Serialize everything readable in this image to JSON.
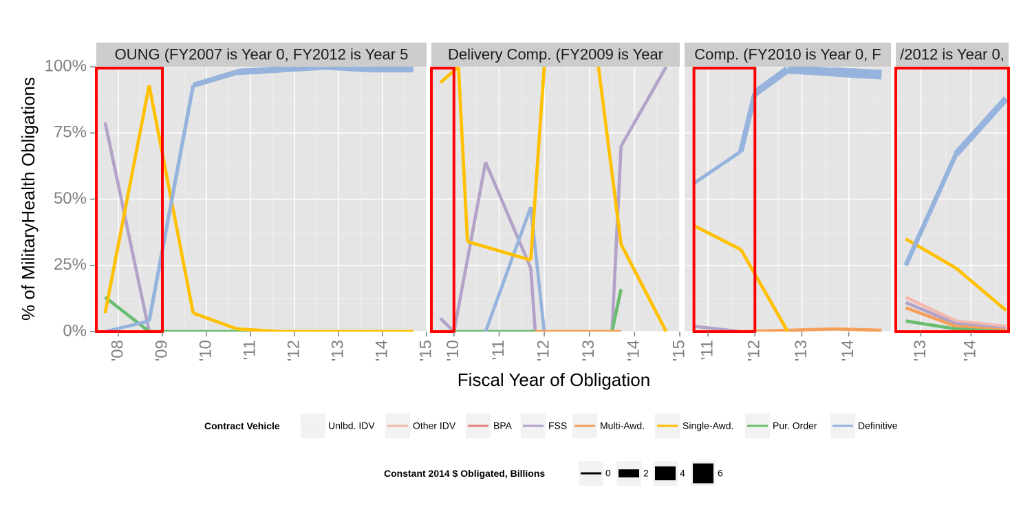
{
  "chart_data": {
    "type": "line",
    "ylabel": "% of  MilitaryHealth  Obligations",
    "xlabel": "Fiscal Year of Obligation",
    "y_ticks": [
      "0%",
      "25%",
      "50%",
      "75%",
      "100%"
    ],
    "ylim": [
      0,
      1
    ],
    "grid": true,
    "legend_position": "bottom",
    "colors": {
      "Unlbd. IDV": "#f0eff5",
      "Other IDV": "#f3b9ae",
      "BPA": "#e7837b",
      "FSS": "#b3a3c8",
      "Multi-Awd.": "#f5a05a",
      "Single-Awd.": "#ffc000",
      "Pur. Order": "#69bd6e",
      "Definitive": "#95b3dc",
      "highlight": "#ff0000"
    },
    "color_legend": {
      "title": "Contract Vehicle",
      "items": [
        "Unlbd. IDV",
        "Other IDV",
        "BPA",
        "FSS",
        "Multi-Awd.",
        "Single-Awd.",
        "Pur. Order",
        "Definitive"
      ]
    },
    "size_legend": {
      "title": "Constant 2014 $ Obligated, Billions",
      "items": [
        "0",
        "2",
        "4",
        "6"
      ],
      "values": [
        0,
        2,
        4,
        6
      ]
    },
    "panels": [
      {
        "strip": "OUNG (FY2007 is Year 0, FY2012 is Year 5",
        "xlim": [
          2007.5,
          2015.0
        ],
        "tick_values": [
          2008,
          2009,
          2010,
          2011,
          2012,
          2013,
          2014,
          2015
        ],
        "tick_labels": [
          "'08",
          "'09",
          "'10",
          "'11",
          "'12",
          "'13",
          "'14",
          "'15"
        ],
        "highlight": [
          2007.5,
          2009.0
        ],
        "series": [
          {
            "name": "FSS",
            "x": [
              2007.7,
              2008.7
            ],
            "y": [
              0.79,
              0.0
            ],
            "size": [
              0.3,
              0.3
            ]
          },
          {
            "name": "Pur. Order",
            "x": [
              2007.7,
              2008.7,
              2009.7,
              2010.7,
              2011.7,
              2012.7,
              2013.7,
              2014.7
            ],
            "y": [
              0.13,
              0.0,
              0.0,
              0.0,
              0.0,
              0.0,
              0.0,
              0.0
            ],
            "size": [
              0.3,
              0.3,
              0.3,
              0.3,
              0.3,
              0.3,
              0.3,
              0.3
            ]
          },
          {
            "name": "Single-Awd.",
            "x": [
              2007.7,
              2008.7,
              2009.7,
              2010.7,
              2011.7,
              2012.7,
              2013.7,
              2014.7
            ],
            "y": [
              0.07,
              0.93,
              0.07,
              0.01,
              0.0,
              0.0,
              0.0,
              0.0
            ],
            "size": [
              0.3,
              0.3,
              0.3,
              0.3,
              0.3,
              0.3,
              0.3,
              0.3
            ]
          },
          {
            "name": "Definitive",
            "x": [
              2007.7,
              2008.7,
              2009.7,
              2010.7,
              2011.7,
              2012.7,
              2013.7,
              2014.7
            ],
            "y": [
              0.0,
              0.04,
              0.93,
              0.98,
              0.99,
              1.0,
              0.99,
              0.99
            ],
            "size": [
              0.3,
              0.3,
              0.6,
              1.5,
              1.4,
              1.3,
              1.3,
              1.3
            ]
          }
        ]
      },
      {
        "strip": "Delivery Comp. (FY2009 is Year",
        "xlim": [
          2009.5,
          2015.0
        ],
        "tick_values": [
          2010,
          2011,
          2012,
          2013,
          2014,
          2015
        ],
        "tick_labels": [
          "'10",
          "'11",
          "'12",
          "'13",
          "'14",
          "'15"
        ],
        "highlight": [
          2009.5,
          2010.0
        ],
        "series": [
          {
            "name": "FSS",
            "x": [
              2009.7,
              2010.0,
              2010.7,
              2011.7,
              2011.8,
              2013.5,
              2013.7,
              2014.7
            ],
            "y": [
              0.05,
              0.0,
              0.64,
              0.24,
              0.0,
              0.0,
              0.7,
              1.0
            ],
            "size": [
              0.3,
              0.3,
              0.3,
              0.3,
              0.3,
              0.3,
              0.3,
              0.3
            ]
          },
          {
            "name": "Pur. Order",
            "x": [
              2009.7,
              2010.7,
              2011.7,
              2012.7,
              2013.5,
              2013.7
            ],
            "y": [
              0.0,
              0.0,
              0.0,
              0.0,
              0.0,
              0.16
            ],
            "size": [
              0.3,
              0.3,
              0.3,
              0.3,
              0.3,
              0.3
            ]
          },
          {
            "name": "Definitive",
            "x": [
              2010.7,
              2011.7,
              2012.0
            ],
            "y": [
              0.0,
              0.47,
              0.0
            ],
            "size": [
              0.3,
              0.3,
              0.3
            ]
          },
          {
            "name": "Multi-Awd.",
            "x": [
              2011.8,
              2012.7,
              2013.7
            ],
            "y": [
              0.0,
              0.0,
              0.0
            ],
            "size": [
              0.3,
              0.3,
              0.3
            ]
          },
          {
            "name": "Single-Awd.",
            "x": [
              2009.7,
              2010.1,
              2010.3,
              2011.7,
              2012.0
            ],
            "y": [
              0.94,
              1.0,
              0.34,
              0.27,
              1.0
            ],
            "size": [
              0.3,
              0.3,
              0.3,
              0.3,
              0.3
            ]
          },
          {
            "name": "Single-Awd.",
            "x": [
              2013.2,
              2013.7,
              2014.7
            ],
            "y": [
              1.0,
              0.33,
              0.0
            ],
            "size": [
              0.3,
              0.3,
              0.3
            ]
          }
        ]
      },
      {
        "strip": "Comp. (FY2010 is Year 0, F",
        "xlim": [
          2010.5,
          2014.9
        ],
        "tick_values": [
          2011,
          2012,
          2013,
          2014
        ],
        "tick_labels": [
          "'11",
          "'12",
          "'13",
          "'14"
        ],
        "highlight": [
          2010.7,
          2012.0
        ],
        "series": [
          {
            "name": "FSS",
            "x": [
              2010.7,
              2011.7
            ],
            "y": [
              0.02,
              0.0
            ],
            "size": [
              0.3,
              0.3
            ]
          },
          {
            "name": "Multi-Awd.",
            "x": [
              2011.7,
              2012.7,
              2013.7,
              2014.7
            ],
            "y": [
              0.0,
              0.005,
              0.01,
              0.005
            ],
            "size": [
              0.3,
              0.3,
              0.3,
              0.3
            ]
          },
          {
            "name": "Single-Awd.",
            "x": [
              2010.7,
              2011.7,
              2012.7
            ],
            "y": [
              0.4,
              0.31,
              0.0
            ],
            "size": [
              0.3,
              0.3,
              0.3
            ]
          },
          {
            "name": "Definitive",
            "x": [
              2010.7,
              2011.7,
              2012.0,
              2012.7,
              2013.7,
              2014.7
            ],
            "y": [
              0.56,
              0.68,
              0.9,
              0.99,
              0.98,
              0.97
            ],
            "size": [
              0.3,
              0.5,
              1.6,
              1.9,
              2.6,
              2.6
            ]
          }
        ]
      },
      {
        "strip": "/2012 is Year 0,",
        "xlim": [
          2012.5,
          2014.75
        ],
        "tick_values": [
          2013,
          2014
        ],
        "tick_labels": [
          "'13",
          "'14"
        ],
        "highlight": [
          2012.5,
          2014.75
        ],
        "series": [
          {
            "name": "Other IDV",
            "x": [
              2012.7,
              2013.7,
              2014.7
            ],
            "y": [
              0.13,
              0.04,
              0.02
            ],
            "size": [
              0.3,
              0.3,
              0.3
            ]
          },
          {
            "name": "FSS",
            "x": [
              2012.7,
              2013.7,
              2014.7
            ],
            "y": [
              0.11,
              0.03,
              0.01
            ],
            "size": [
              0.3,
              0.3,
              0.3
            ]
          },
          {
            "name": "Multi-Awd.",
            "x": [
              2012.7,
              2013.7,
              2014.7
            ],
            "y": [
              0.09,
              0.02,
              0.005
            ],
            "size": [
              0.3,
              0.3,
              0.3
            ]
          },
          {
            "name": "Pur. Order",
            "x": [
              2012.7,
              2013.7,
              2014.7
            ],
            "y": [
              0.04,
              0.01,
              0.0
            ],
            "size": [
              0.3,
              0.3,
              0.3
            ]
          },
          {
            "name": "Single-Awd.",
            "x": [
              2012.7,
              2013.7,
              2014.7
            ],
            "y": [
              0.35,
              0.24,
              0.08
            ],
            "size": [
              0.3,
              0.3,
              0.3
            ]
          },
          {
            "name": "Definitive",
            "x": [
              2012.7,
              2013.7,
              2014.7
            ],
            "y": [
              0.25,
              0.67,
              0.88
            ],
            "size": [
              0.3,
              1.3,
              1.6
            ]
          }
        ]
      }
    ]
  }
}
